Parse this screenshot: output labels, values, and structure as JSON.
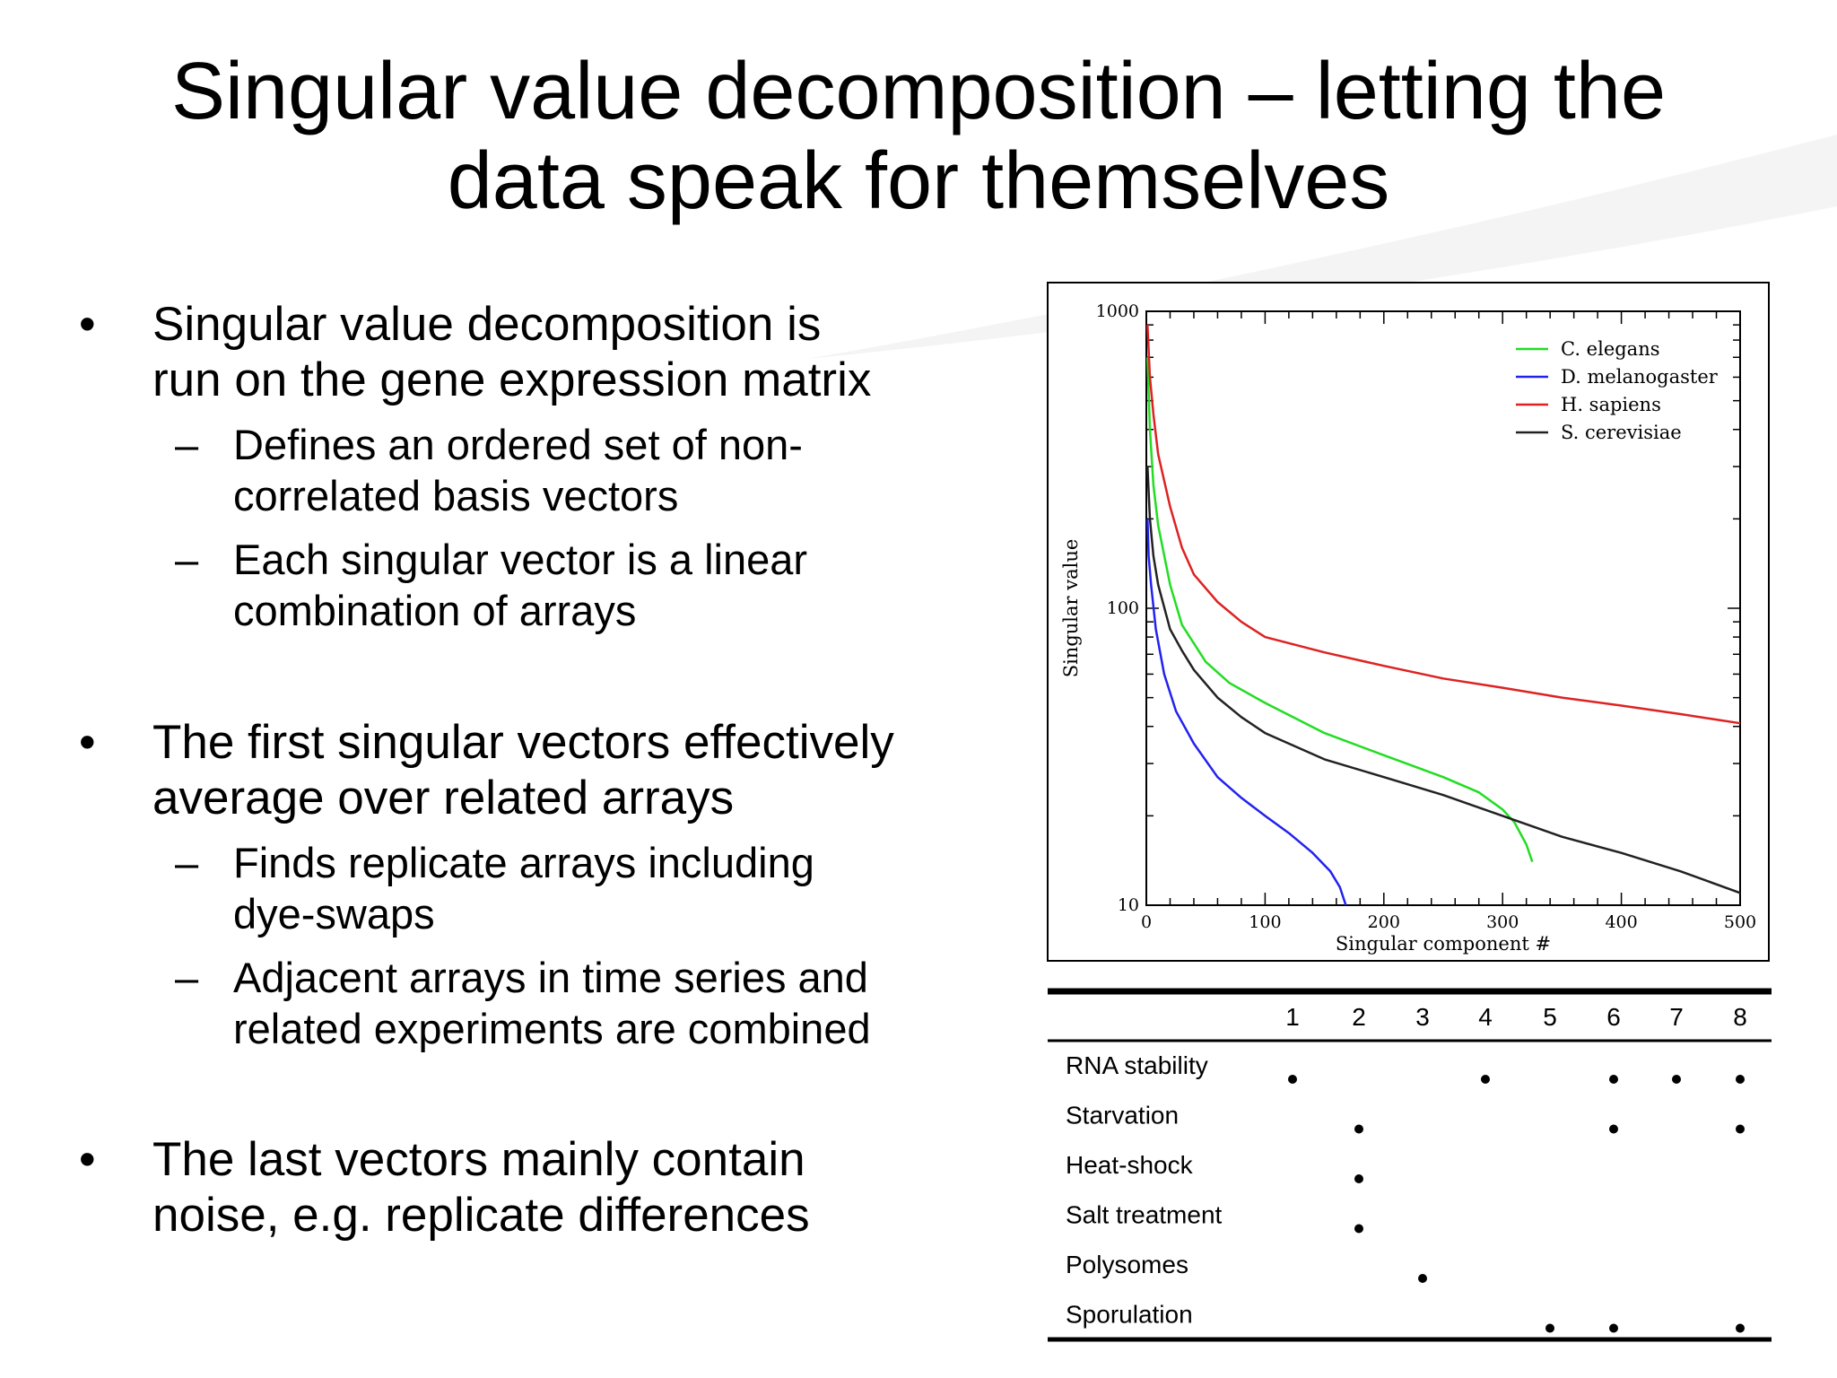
{
  "slide": {
    "title_line1": "Singular value decomposition – letting the",
    "title_line2": "data speak for themselves"
  },
  "bullets": [
    {
      "lines": [
        "Singular value decomposition is",
        "run on the gene expression matrix"
      ],
      "subs": [
        {
          "lines": [
            "Defines an ordered set of non-",
            "correlated basis vectors"
          ]
        },
        {
          "lines": [
            "Each singular vector is a linear",
            "combination of arrays"
          ]
        }
      ]
    },
    {
      "lines": [
        "The first singular vectors effectively",
        "average over related arrays"
      ],
      "subs": [
        {
          "lines": [
            "Finds replicate arrays including",
            "dye-swaps"
          ]
        },
        {
          "lines": [
            "Adjacent arrays in time series and",
            "related experiments are combined"
          ]
        }
      ]
    },
    {
      "lines": [
        "The last vectors mainly contain",
        "noise, e.g. replicate differences"
      ],
      "subs": []
    }
  ],
  "bullet_symbol": "•",
  "sub_symbol": "–",
  "chart_data": {
    "type": "line",
    "xlabel": "Singular component #",
    "ylabel": "Singular value",
    "xlim": [
      0,
      500
    ],
    "ylim": [
      10,
      1000
    ],
    "yscale": "log",
    "x_ticks": [
      0,
      100,
      200,
      300,
      400,
      500
    ],
    "y_ticks": [
      10,
      100,
      1000
    ],
    "legend_position": "top-right",
    "series": [
      {
        "name": "C. elegans",
        "color": "#22dd22",
        "points": [
          [
            1,
            700
          ],
          [
            3,
            400
          ],
          [
            6,
            260
          ],
          [
            10,
            190
          ],
          [
            20,
            120
          ],
          [
            30,
            88
          ],
          [
            50,
            66
          ],
          [
            70,
            56
          ],
          [
            100,
            48
          ],
          [
            150,
            38
          ],
          [
            200,
            32
          ],
          [
            250,
            27
          ],
          [
            280,
            24
          ],
          [
            300,
            21
          ],
          [
            310,
            19
          ],
          [
            320,
            16
          ],
          [
            325,
            14
          ]
        ]
      },
      {
        "name": "D. melanogaster",
        "color": "#2222ee",
        "points": [
          [
            1,
            200
          ],
          [
            2,
            150
          ],
          [
            4,
            120
          ],
          [
            8,
            85
          ],
          [
            15,
            60
          ],
          [
            25,
            45
          ],
          [
            40,
            35
          ],
          [
            60,
            27
          ],
          [
            80,
            23
          ],
          [
            100,
            20
          ],
          [
            120,
            17.5
          ],
          [
            140,
            15
          ],
          [
            155,
            13
          ],
          [
            163,
            11.5
          ],
          [
            168,
            10
          ]
        ]
      },
      {
        "name": "H. sapiens",
        "color": "#dd2222",
        "points": [
          [
            1,
            900
          ],
          [
            3,
            600
          ],
          [
            6,
            450
          ],
          [
            10,
            330
          ],
          [
            20,
            220
          ],
          [
            30,
            160
          ],
          [
            40,
            130
          ],
          [
            60,
            105
          ],
          [
            80,
            90
          ],
          [
            100,
            80
          ],
          [
            150,
            71
          ],
          [
            200,
            64
          ],
          [
            250,
            58
          ],
          [
            300,
            54
          ],
          [
            350,
            50
          ],
          [
            400,
            47
          ],
          [
            450,
            44
          ],
          [
            500,
            41
          ]
        ]
      },
      {
        "name": "S. cerevisiae",
        "color": "#222222",
        "points": [
          [
            1,
            300
          ],
          [
            3,
            200
          ],
          [
            6,
            150
          ],
          [
            10,
            120
          ],
          [
            20,
            85
          ],
          [
            30,
            72
          ],
          [
            40,
            62
          ],
          [
            60,
            50
          ],
          [
            80,
            43
          ],
          [
            100,
            38
          ],
          [
            150,
            31
          ],
          [
            200,
            27
          ],
          [
            250,
            23.5
          ],
          [
            300,
            20
          ],
          [
            350,
            17
          ],
          [
            400,
            15
          ],
          [
            450,
            13
          ],
          [
            500,
            11
          ]
        ]
      }
    ]
  },
  "table": {
    "columns": [
      "1",
      "2",
      "3",
      "4",
      "5",
      "6",
      "7",
      "8"
    ],
    "rows": [
      {
        "label": "RNA stability",
        "marks": [
          1,
          4,
          6,
          7,
          8
        ]
      },
      {
        "label": "Starvation",
        "marks": [
          2,
          6,
          8
        ]
      },
      {
        "label": "Heat-shock",
        "marks": [
          2
        ]
      },
      {
        "label": "Salt treatment",
        "marks": [
          2
        ]
      },
      {
        "label": "Polysomes",
        "marks": [
          3
        ]
      },
      {
        "label": "Sporulation",
        "marks": [
          5,
          6,
          8
        ]
      }
    ],
    "mark_symbol": "•"
  }
}
